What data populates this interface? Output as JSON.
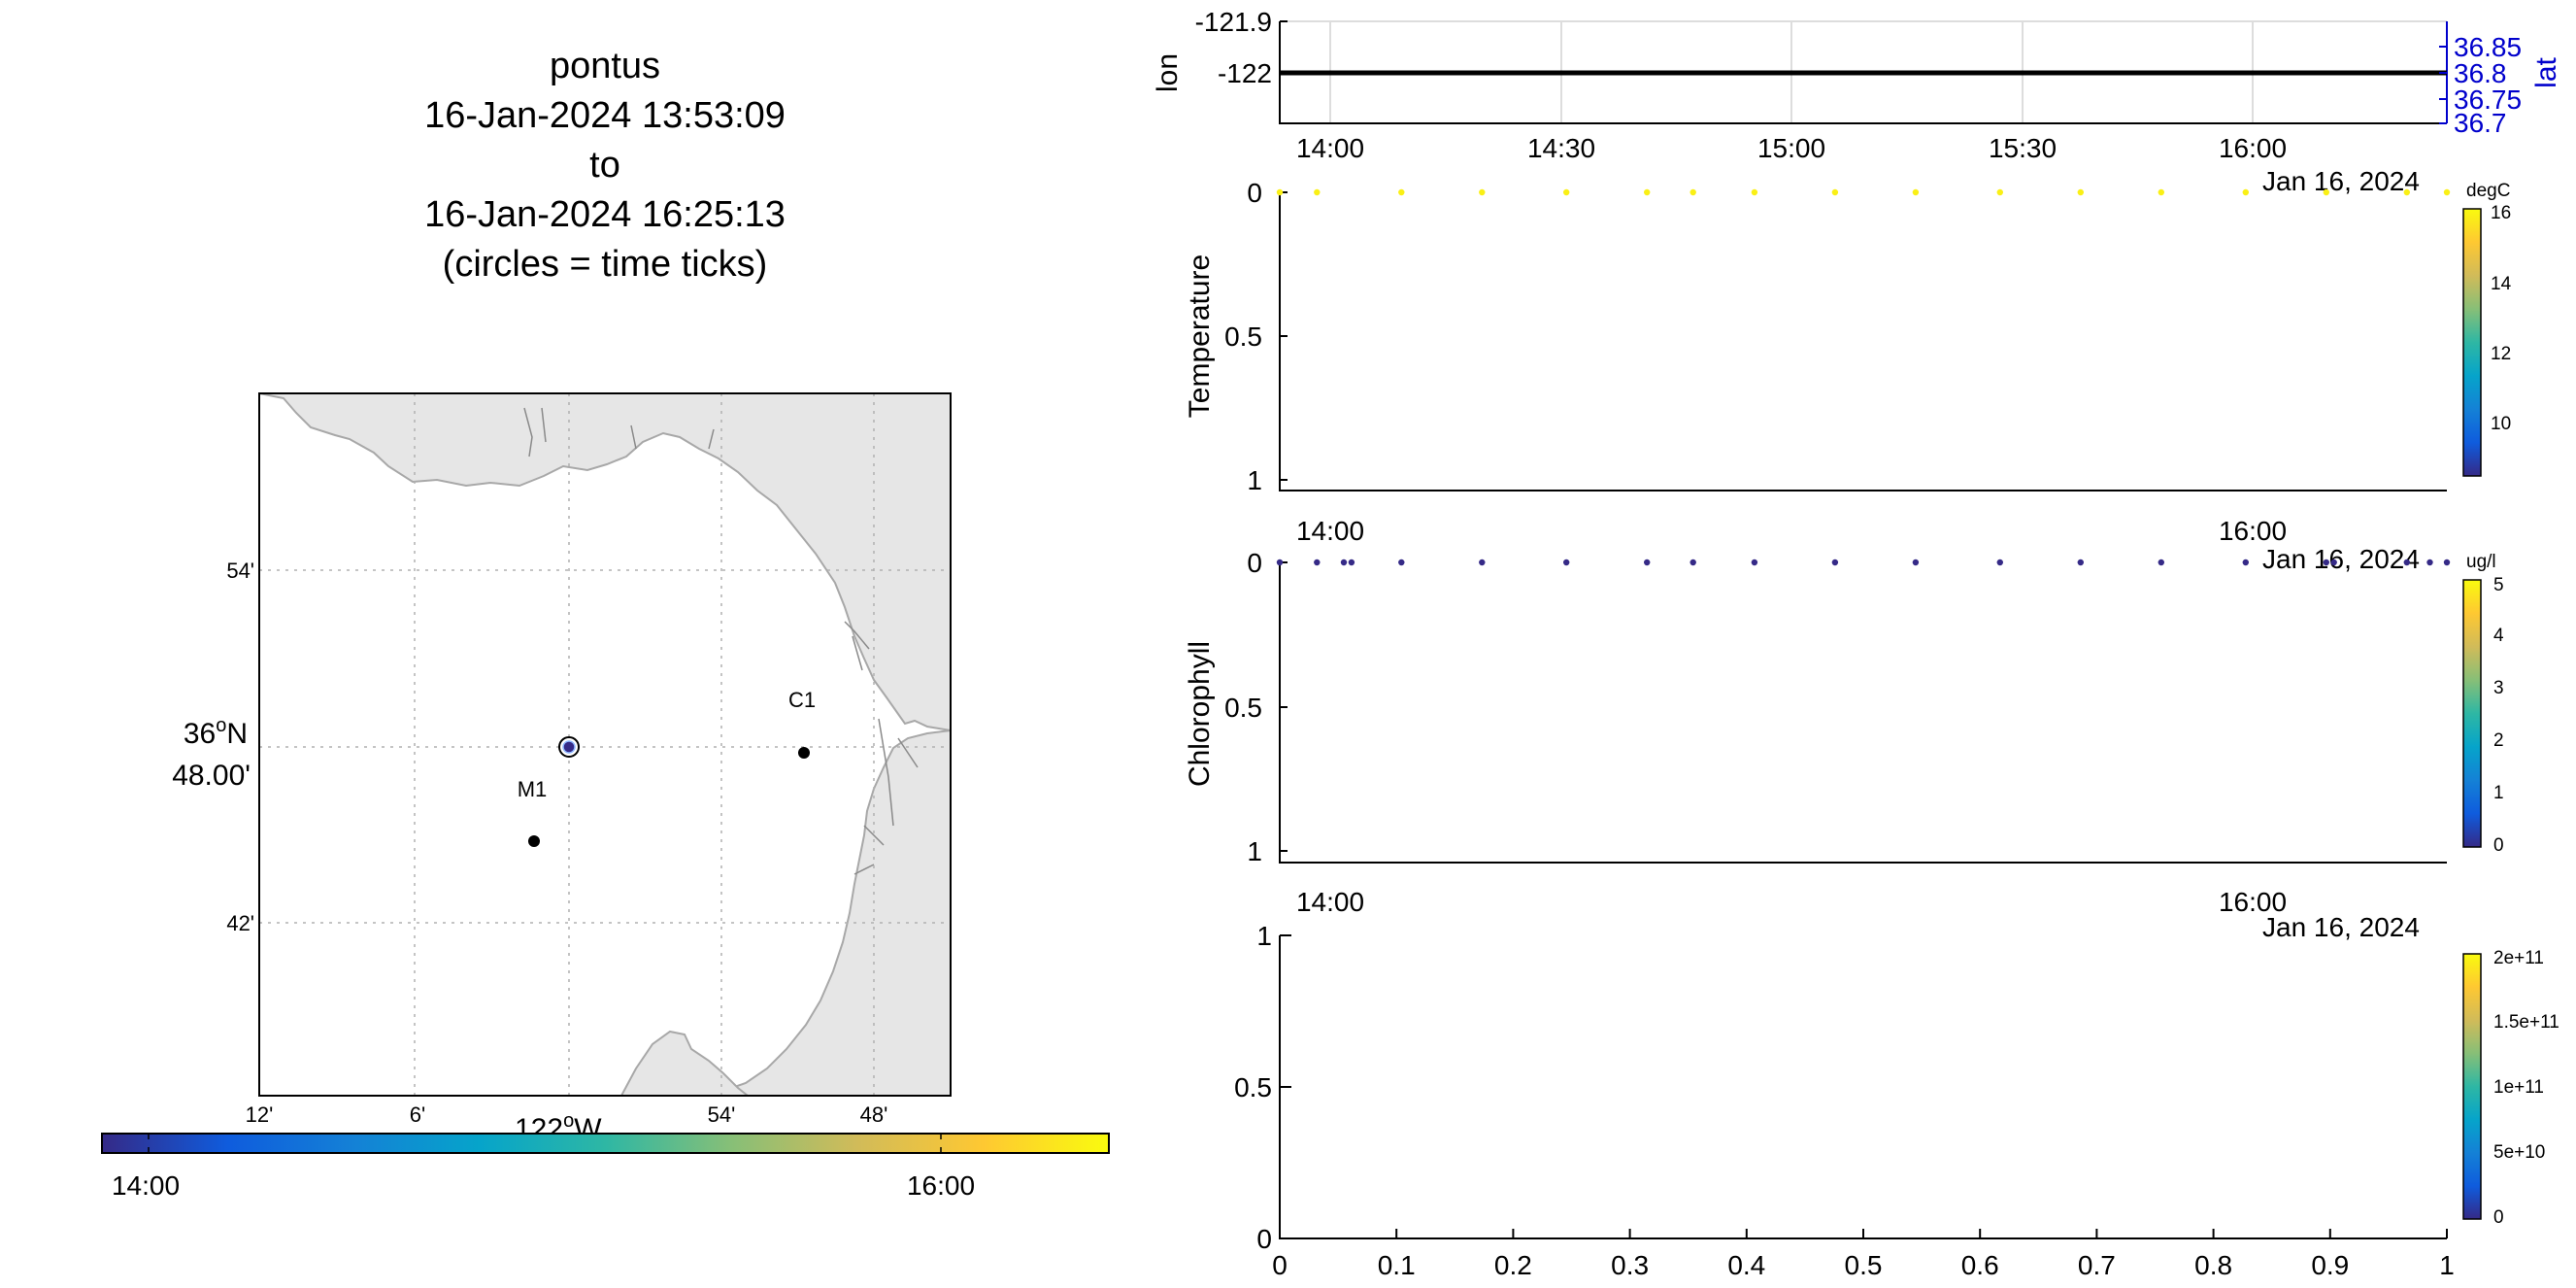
{
  "figure": {
    "title_lines": [
      "pontus",
      "16-Jan-2024 13:53:09",
      "to",
      "16-Jan-2024 16:25:13",
      "(circles = time ticks)"
    ]
  },
  "colors": {
    "land": "#e6e6e6",
    "coast": "#a8a8a8",
    "grid": "#cccccc",
    "axis": "#000000",
    "lat_axis": "#0000cc",
    "parula": [
      "#352a87",
      "#0f5cdd",
      "#1481d6",
      "#06a4ca",
      "#2eb7a4",
      "#87bf77",
      "#d1bb59",
      "#fec832",
      "#f9fb0e"
    ]
  },
  "map": {
    "xticks": [
      "12'",
      "6'",
      "54'",
      "48'"
    ],
    "xlabel_main": "122",
    "xlabel_deg": "o",
    "xlabel_suffix": "W",
    "ylabel_main": "36",
    "ylabel_deg": "o",
    "ylabel_suffix": "N",
    "ylabel_sub": "48.00'",
    "yticks": [
      "54'",
      "42'"
    ],
    "stations": [
      {
        "name": "C1",
        "lon": -121.9,
        "lat": 36.797
      },
      {
        "name": "M1",
        "lon": -122.035,
        "lat": 36.747
      }
    ],
    "vehicle": {
      "lon": -122.0,
      "lat": 36.8
    },
    "time_colorbar": {
      "ticks": [
        "14:00",
        "16:00"
      ],
      "start": "13:53:09",
      "end": "16:25:13"
    }
  },
  "chart_data": [
    {
      "type": "line",
      "panel": "position",
      "ylabel": "lon",
      "ylabel_right": "lat",
      "x_ticks": [
        "14:00",
        "14:30",
        "15:00",
        "15:30",
        "16:00"
      ],
      "y_ticks": [
        "-121.9",
        "-122"
      ],
      "y2_ticks": [
        "36.85",
        "36.8",
        "36.75",
        "36.7"
      ],
      "ylim": [
        -122.03,
        -121.89
      ],
      "y2lim": [
        36.7,
        36.87
      ],
      "xlim": [
        "13:53:09",
        "16:25:13"
      ],
      "grid": true,
      "series": [
        {
          "x": [
            "13:53:09",
            "16:25:13"
          ],
          "y": [
            -122.0,
            -122.0
          ]
        }
      ]
    },
    {
      "type": "scatter",
      "panel": "temperature",
      "ylabel": "Temperature",
      "x_ticks": [
        "14:00",
        "16:00"
      ],
      "x_date_label": "Jan 16, 2024",
      "y_ticks": [
        "0",
        "0.5",
        "1"
      ],
      "ylim": [
        0,
        1
      ],
      "xlim": [
        "13:53:09",
        "16:25:13"
      ],
      "colorbar": {
        "unit": "degC",
        "ticks": [
          "16",
          "14",
          "12",
          "10"
        ],
        "range": [
          8.5,
          16.2
        ]
      },
      "points": [
        {
          "t": "13:53:09",
          "depth": 0,
          "value": 16
        },
        {
          "t": "13:58:00",
          "depth": 0,
          "value": 16
        },
        {
          "t": "14:09:00",
          "depth": 0,
          "value": 16
        },
        {
          "t": "14:19:30",
          "depth": 0,
          "value": 16
        },
        {
          "t": "14:30:30",
          "depth": 0,
          "value": 16
        },
        {
          "t": "14:41:00",
          "depth": 0,
          "value": 16
        },
        {
          "t": "14:47:00",
          "depth": 0,
          "value": 16
        },
        {
          "t": "14:55:00",
          "depth": 0,
          "value": 16
        },
        {
          "t": "15:05:30",
          "depth": 0,
          "value": 16
        },
        {
          "t": "15:16:00",
          "depth": 0,
          "value": 16
        },
        {
          "t": "15:27:00",
          "depth": 0,
          "value": 16
        },
        {
          "t": "15:37:30",
          "depth": 0,
          "value": 16
        },
        {
          "t": "15:48:00",
          "depth": 0,
          "value": 16
        },
        {
          "t": "15:59:00",
          "depth": 0,
          "value": 16
        },
        {
          "t": "16:09:30",
          "depth": 0,
          "value": 16
        },
        {
          "t": "16:20:00",
          "depth": 0,
          "value": 16
        },
        {
          "t": "16:25:13",
          "depth": 0,
          "value": 16
        }
      ]
    },
    {
      "type": "scatter",
      "panel": "chlorophyll",
      "ylabel": "Chlorophyll",
      "x_ticks": [
        "14:00",
        "16:00"
      ],
      "x_date_label": "Jan 16, 2024",
      "y_ticks": [
        "0",
        "0.5",
        "1"
      ],
      "ylim": [
        0,
        1
      ],
      "xlim": [
        "13:53:09",
        "16:25:13"
      ],
      "colorbar": {
        "unit": "ug/l",
        "ticks": [
          "5",
          "4",
          "3",
          "2",
          "1",
          "0"
        ],
        "range": [
          0,
          5
        ]
      },
      "points": [
        {
          "t": "13:53:09",
          "depth": 0,
          "value": 0
        },
        {
          "t": "13:58:00",
          "depth": 0,
          "value": 0
        },
        {
          "t": "14:01:30",
          "depth": 0,
          "value": 0
        },
        {
          "t": "14:02:30",
          "depth": 0,
          "value": 0
        },
        {
          "t": "14:09:00",
          "depth": 0,
          "value": 0
        },
        {
          "t": "14:19:30",
          "depth": 0,
          "value": 0
        },
        {
          "t": "14:30:30",
          "depth": 0,
          "value": 0
        },
        {
          "t": "14:41:00",
          "depth": 0,
          "value": 0
        },
        {
          "t": "14:47:00",
          "depth": 0,
          "value": 0
        },
        {
          "t": "14:55:00",
          "depth": 0,
          "value": 0
        },
        {
          "t": "15:05:30",
          "depth": 0,
          "value": 0
        },
        {
          "t": "15:16:00",
          "depth": 0,
          "value": 0
        },
        {
          "t": "15:27:00",
          "depth": 0,
          "value": 0
        },
        {
          "t": "15:37:30",
          "depth": 0,
          "value": 0
        },
        {
          "t": "15:48:00",
          "depth": 0,
          "value": 0
        },
        {
          "t": "15:59:00",
          "depth": 0,
          "value": 0
        },
        {
          "t": "16:09:30",
          "depth": 0,
          "value": 0
        },
        {
          "t": "16:10:30",
          "depth": 0,
          "value": 0
        },
        {
          "t": "16:20:00",
          "depth": 0,
          "value": 0
        },
        {
          "t": "16:23:00",
          "depth": 0,
          "value": 0
        },
        {
          "t": "16:25:13",
          "depth": 0,
          "value": 0
        }
      ]
    },
    {
      "type": "scatter",
      "panel": "empty",
      "x_ticks": [
        "0",
        "0.1",
        "0.2",
        "0.3",
        "0.4",
        "0.5",
        "0.6",
        "0.7",
        "0.8",
        "0.9",
        "1"
      ],
      "y_ticks": [
        "1",
        "0.5",
        "0"
      ],
      "xlim": [
        0,
        1
      ],
      "ylim": [
        0,
        1
      ],
      "colorbar": {
        "ticks": [
          "2e+11",
          "1.5e+11",
          "1e+11",
          "5e+10",
          "0"
        ],
        "range": [
          0,
          200000000000.0
        ]
      },
      "points": []
    }
  ]
}
